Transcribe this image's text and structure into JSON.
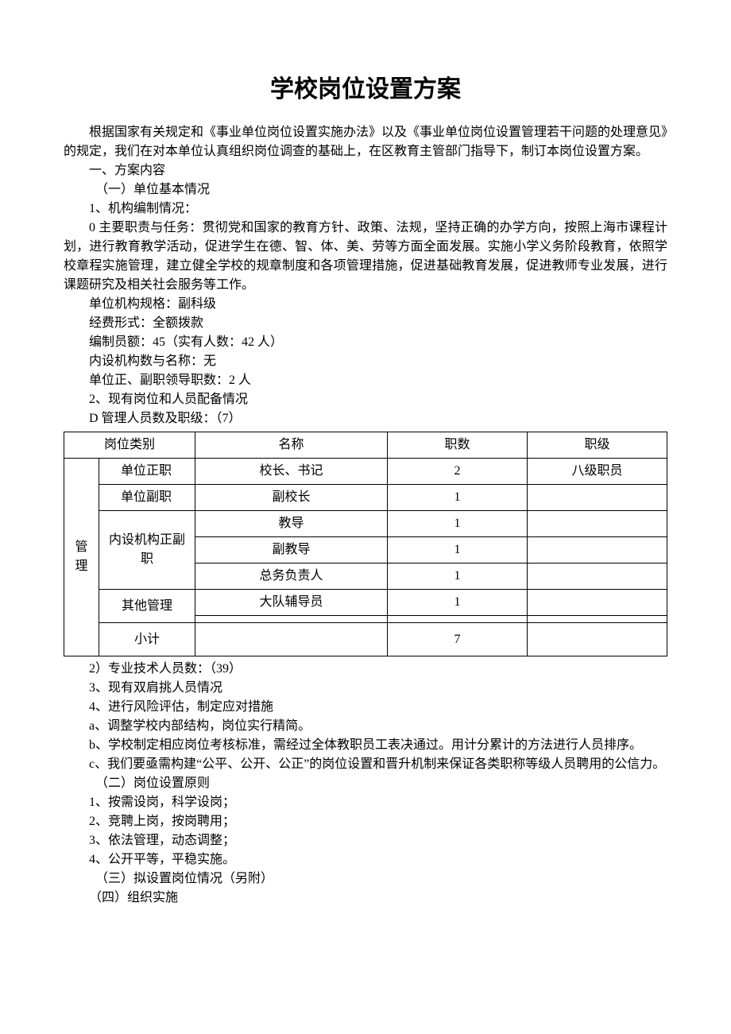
{
  "title": "学校岗位设置方案",
  "intro": "根据国家有关规定和《事业单位岗位设置实施办法》以及《事业单位岗位设置管理若干问题的处理意见》的规定，我们在对本单位认真组织岗位调查的基础上，在区教育主管部门指导下，制订本岗位设置方案。",
  "section1": "一、方案内容",
  "section1_1": "（一）单位基本情况",
  "item1": "1、机构编制情况：",
  "duty": "0 主要职责与任务：贯彻党和国家的教育方针、政策、法规，坚持正确的办学方向，按照上海市课程计划，进行教育教学活动，促进学生在德、智、体、美、劳等方面全面发展。实施小学义务阶段教育，依照学校章程实施管理，建立健全学校的规章制度和各项管理措施，促进基础教育发展，促进教师专业发展，进行课题研究及相关社会服务等工作。",
  "org_spec": "单位机构规格：副科级",
  "fund_form": "经费形式：全额拨款",
  "staff_quota": "编制员额：45（实有人数：42 人）",
  "internal_org": "内设机构数与名称：无",
  "leader_count": "单位正、副职领导职数：2 人",
  "item2": "2、现有岗位和人员配备情况",
  "mgmt_header": "D 管理人员数及职级：（7）",
  "table": {
    "headers": {
      "category": "岗位类别",
      "name": "名称",
      "count": "职数",
      "level": "职级"
    },
    "cat_main": "管理",
    "rows": [
      {
        "sub": "单位正职",
        "name": "校长、书记",
        "count": "2",
        "level": "八级职员"
      },
      {
        "sub": "单位副职",
        "name": "副校长",
        "count": "1",
        "level": ""
      },
      {
        "sub": "内设机构正副职",
        "name": "教导",
        "count": "1",
        "level": ""
      },
      {
        "sub": "",
        "name": "副教导",
        "count": "1",
        "level": ""
      },
      {
        "sub": "",
        "name": "总务负责人",
        "count": "1",
        "level": ""
      },
      {
        "sub": "其他管理",
        "name": "大队辅导员",
        "count": "1",
        "level": ""
      },
      {
        "sub": "",
        "name": "",
        "count": "",
        "level": ""
      },
      {
        "sub": "小计",
        "name": "",
        "count": "7",
        "level": ""
      }
    ]
  },
  "tech_staff": "2）专业技术人员数：（39）",
  "item3": "3、现有双肩挑人员情况",
  "item4": "4、进行风险评估，制定应对措施",
  "item4a": "a、调整学校内部结构，岗位实行精简。",
  "item4b": "b、学校制定相应岗位考核标准，需经过全体教职员工表决通过。用计分累计的方法进行人员排序。",
  "item4c": "c、我们要亟需构建“公平、公开、公正”的岗位设置和晋升机制来保证各类职称等级人员聘用的公信力。",
  "section1_2": "（二）岗位设置原则",
  "principle1": "1、按需设岗，科学设岗；",
  "principle2": "2、竞聘上岗，按岗聘用；",
  "principle3": "3、依法管理，动态调整；",
  "principle4": "4、公开平等，平稳实施。",
  "section1_3": "（三）拟设置岗位情况（另附）",
  "section1_4": "（四）组织实施"
}
